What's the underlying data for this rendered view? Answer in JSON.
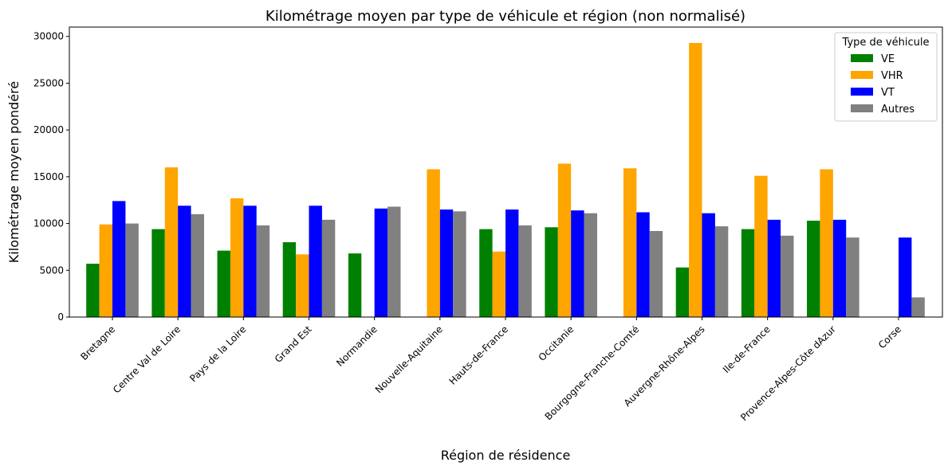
{
  "chart_data": {
    "type": "bar",
    "title": "Kilométrage moyen par type de véhicule et région (non normalisé)",
    "xlabel": "Région de résidence",
    "ylabel": "Kilométrage moyen pondéré",
    "ylim": [
      0,
      31000
    ],
    "yticks": [
      0,
      5000,
      10000,
      15000,
      20000,
      25000,
      30000
    ],
    "grid": false,
    "legend": {
      "title": "Type de véhicule",
      "placement": "top-right"
    },
    "categories": [
      "Bretagne",
      "Centre  Val de Loire",
      "Pays de la Loire",
      "Grand Est",
      "Normandie",
      "Nouvelle-Aquitaine",
      "Hauts-de-France",
      "Occitanie",
      "Bourgogne-Franche-Comté",
      "Auvergne-Rhône-Alpes",
      "Ile-de-France",
      "Provence-Alpes-Côte dAzur",
      "Corse"
    ],
    "series": [
      {
        "name": "VE",
        "color": "#008000",
        "values": [
          5700,
          9400,
          7100,
          8000,
          6800,
          null,
          9400,
          9600,
          null,
          5300,
          9400,
          10300,
          null
        ]
      },
      {
        "name": "VHR",
        "color": "#ffa500",
        "values": [
          9900,
          16000,
          12700,
          6700,
          null,
          15800,
          7000,
          16400,
          15900,
          29300,
          15100,
          15800,
          null
        ]
      },
      {
        "name": "VT",
        "color": "#0000ff",
        "values": [
          12400,
          11900,
          11900,
          11900,
          11600,
          11500,
          11500,
          11400,
          11200,
          11100,
          10400,
          10400,
          8500
        ]
      },
      {
        "name": "Autres",
        "color": "#808080",
        "values": [
          10000,
          11000,
          9800,
          10400,
          11800,
          11300,
          9800,
          11100,
          9200,
          9700,
          8700,
          8500,
          2100
        ]
      }
    ]
  }
}
